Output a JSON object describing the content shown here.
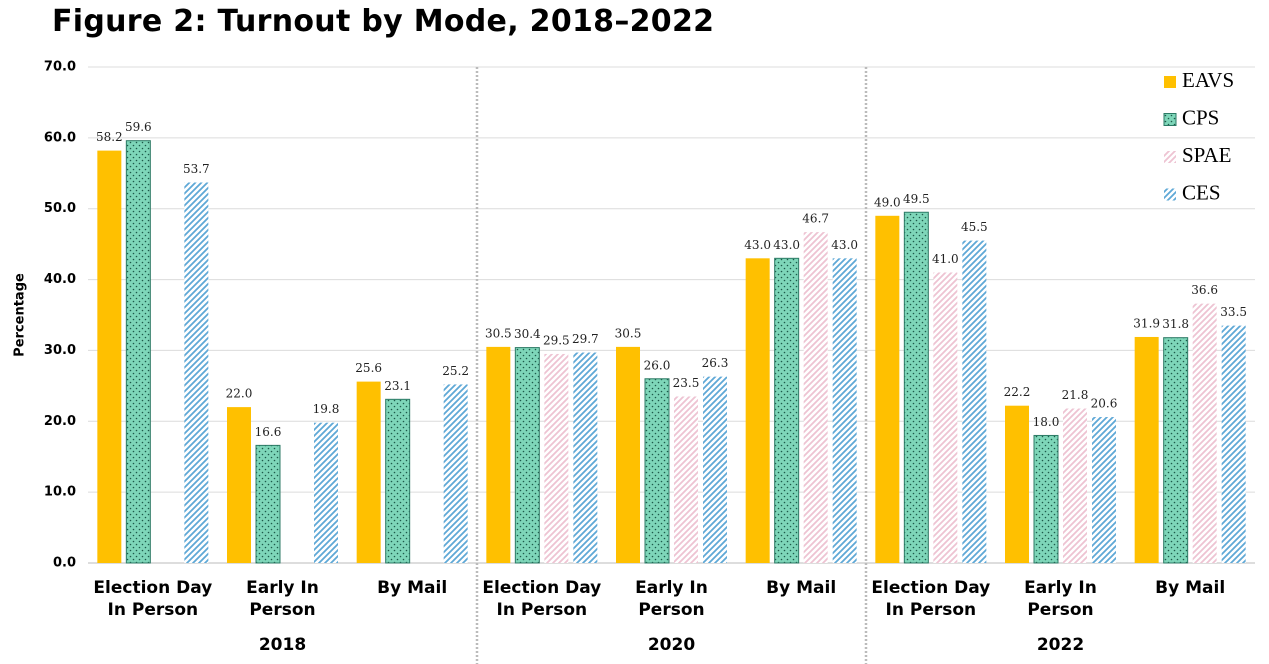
{
  "chart_data": {
    "type": "bar",
    "title": "Figure 2: Turnout by Mode, 2018–2022",
    "y_label": "Percentage",
    "categories": [
      "Election Day\nIn Person",
      "Early In\nPerson",
      "By Mail",
      "Election Day\nIn Person",
      "Early In\nPerson",
      "By Mail",
      "Election Day\nIn Person",
      "Early In\nPerson",
      "By Mail"
    ],
    "groups": [
      "2018",
      "2020",
      "2022"
    ],
    "series": [
      {
        "name": "EAVS",
        "color": "#ffc000",
        "pattern": "solid",
        "values": [
          58.2,
          22.0,
          25.6,
          30.5,
          30.5,
          43.0,
          49.0,
          22.2,
          31.9
        ],
        "value_labels": [
          "58.2",
          "22.0",
          "25.6",
          "30.5",
          "30.5",
          "43.0",
          "49.0",
          "22.2",
          "31.9"
        ]
      },
      {
        "name": "CPS",
        "color": "#7ed6b9",
        "pattern": "dots",
        "values": [
          59.6,
          16.6,
          23.1,
          30.4,
          26.0,
          43.0,
          49.5,
          18.0,
          31.8
        ],
        "value_labels": [
          "59.6",
          "16.6",
          "23.1",
          "30.4",
          "26.0",
          "43.0",
          "49.5",
          "18.0",
          "31.8"
        ]
      },
      {
        "name": "SPAE",
        "color": "#eec3d2",
        "pattern": "stripes",
        "values": [
          null,
          null,
          null,
          29.5,
          23.5,
          46.7,
          41.0,
          21.8,
          36.6
        ],
        "value_labels": [
          null,
          null,
          null,
          "29.5",
          "23.5",
          "46.7",
          "41.0",
          "21.8",
          "36.6"
        ]
      },
      {
        "name": "CES",
        "color": "#5ea8d6",
        "pattern": "stripes",
        "values": [
          53.7,
          19.8,
          25.2,
          29.7,
          26.3,
          43.0,
          45.5,
          20.6,
          33.5
        ],
        "value_labels": [
          "53.7",
          "19.8",
          "25.2",
          "29.7",
          "26.3",
          "43.0",
          "45.5",
          "20.6",
          "33.5"
        ]
      }
    ],
    "ylim": [
      0,
      70
    ],
    "yticks": [
      {
        "value": 0,
        "label": "0.0"
      },
      {
        "value": 10,
        "label": "10.0"
      },
      {
        "value": 20,
        "label": "20.0"
      },
      {
        "value": 30,
        "label": "30.0"
      },
      {
        "value": 40,
        "label": "40.0"
      },
      {
        "value": 50,
        "label": "50.0"
      },
      {
        "value": 60,
        "label": "60.0"
      },
      {
        "value": 70,
        "label": "70.0"
      }
    ],
    "grid": true,
    "legend": "top-right"
  }
}
